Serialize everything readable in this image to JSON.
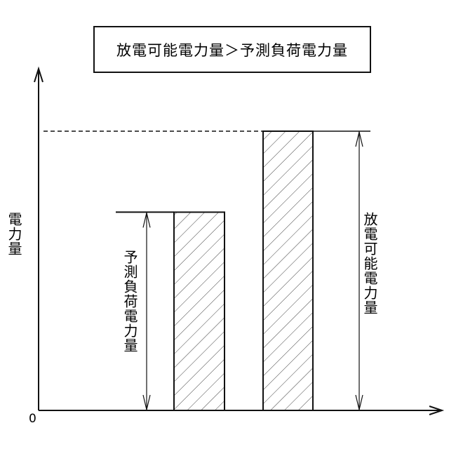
{
  "title": "放電可能電力量＞予測負荷電力量",
  "y_axis_label": "電力量",
  "origin_label": "0",
  "bars": [
    {
      "label": "予測負荷電力量",
      "relative_value": 0.71,
      "fill": "diagonal-hatch"
    },
    {
      "label": "放電可能電力量",
      "relative_value": 1.0,
      "fill": "diagonal-hatch"
    }
  ],
  "colors": {
    "line": "#111111",
    "hatch": "#444444",
    "background": "#ffffff"
  }
}
